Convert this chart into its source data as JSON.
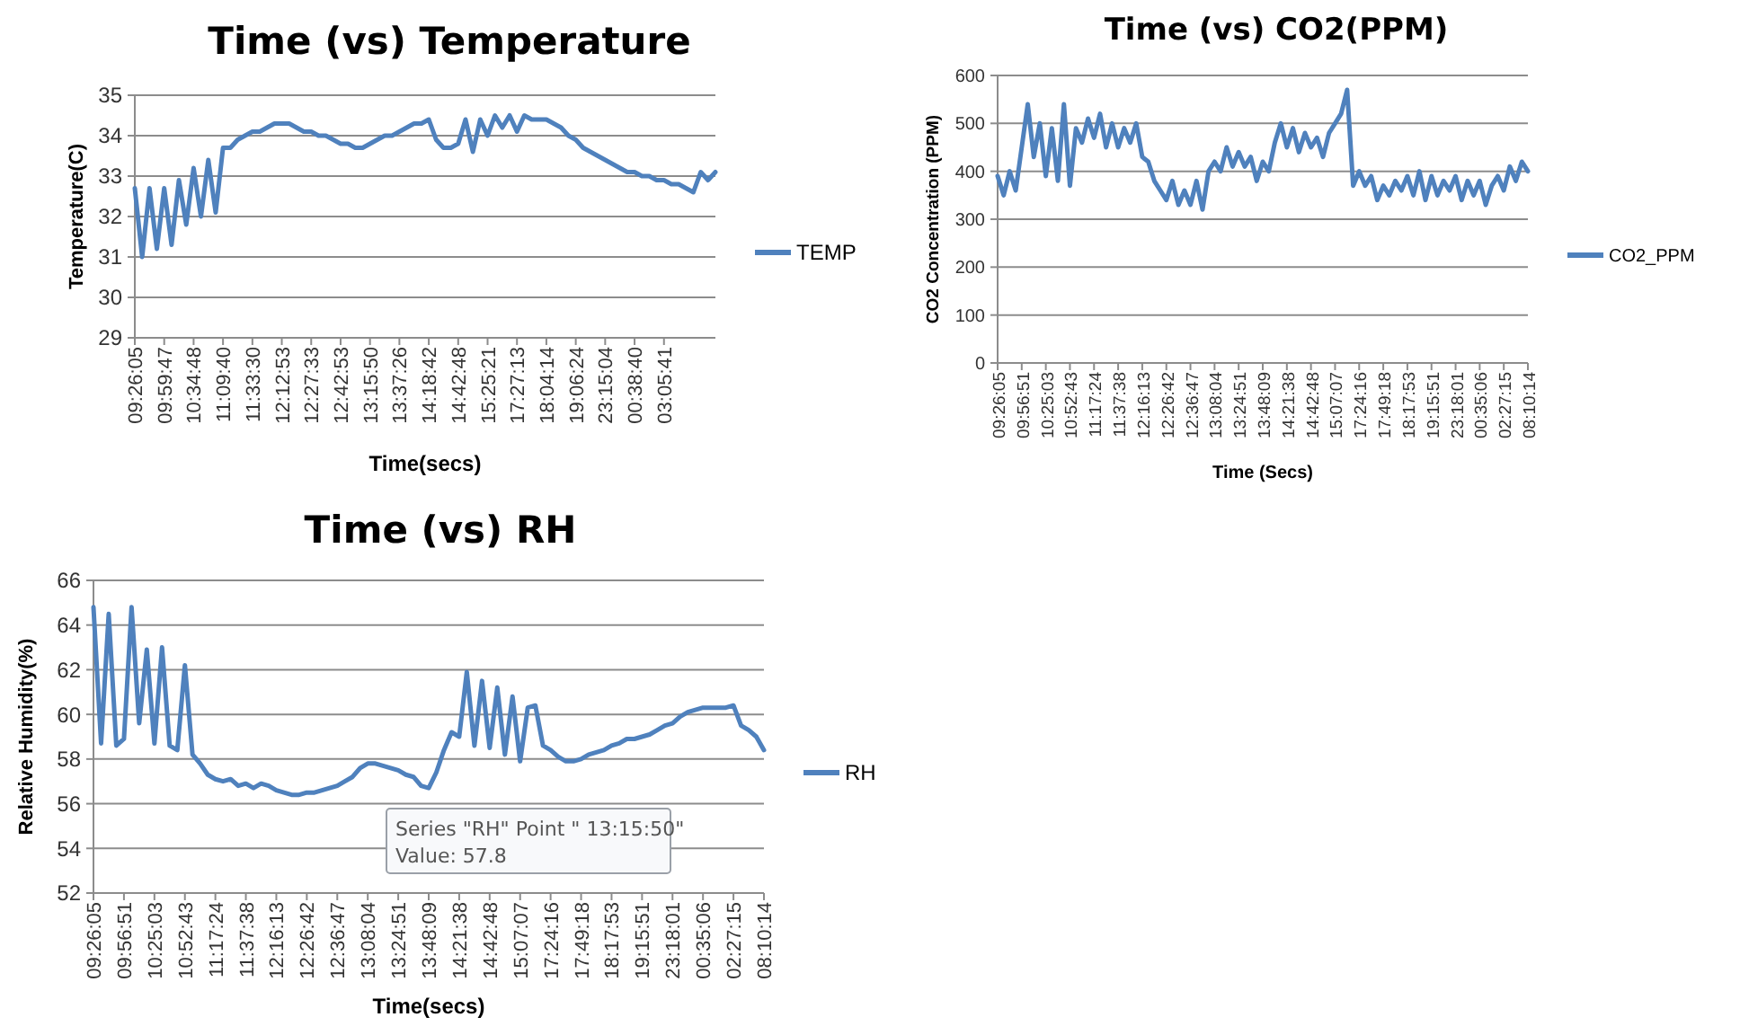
{
  "chart_data": [
    {
      "type": "line",
      "title": "Time (vs) Temperature",
      "xlabel": "Time(secs)",
      "ylabel": "Temperature(C)",
      "ylim": [
        29,
        35
      ],
      "yticks": [
        29,
        30,
        31,
        32,
        33,
        34,
        35
      ],
      "grid": "y",
      "legend": "right",
      "marker": "none",
      "categories": [
        "09:26:05",
        null,
        null,
        null,
        "09:59:47",
        null,
        null,
        null,
        "10:34:48",
        null,
        null,
        null,
        "11:09:40",
        null,
        null,
        null,
        "11:33:30",
        null,
        null,
        null,
        "12:12:53",
        null,
        null,
        null,
        "12:27:33",
        null,
        null,
        null,
        "12:42:53",
        null,
        null,
        null,
        "13:15:50",
        null,
        null,
        null,
        "13:37:26",
        null,
        null,
        null,
        "14:18:42",
        null,
        null,
        null,
        "14:42:48",
        null,
        null,
        null,
        "15:25:21",
        null,
        null,
        null,
        "17:27:13",
        null,
        null,
        null,
        "18:04:14",
        null,
        null,
        null,
        "19:06:24",
        null,
        null,
        null,
        "23:15:04",
        null,
        null,
        null,
        "00:38:40",
        null,
        null,
        null,
        "03:05:41",
        null,
        null,
        null,
        null,
        null,
        null,
        null
      ],
      "series": [
        {
          "name": "TEMP",
          "color": "#4f81bd",
          "values": [
            32.7,
            31.0,
            32.7,
            31.2,
            32.7,
            31.3,
            32.9,
            31.8,
            33.2,
            32.0,
            33.4,
            32.1,
            33.7,
            33.7,
            33.9,
            34.0,
            34.1,
            34.1,
            34.2,
            34.3,
            34.3,
            34.3,
            34.2,
            34.1,
            34.1,
            34.0,
            34.0,
            33.9,
            33.8,
            33.8,
            33.7,
            33.7,
            33.8,
            33.9,
            34.0,
            34.0,
            34.1,
            34.2,
            34.3,
            34.3,
            34.4,
            33.9,
            33.7,
            33.7,
            33.8,
            34.4,
            33.6,
            34.4,
            34.0,
            34.5,
            34.2,
            34.5,
            34.1,
            34.5,
            34.4,
            34.4,
            34.4,
            34.3,
            34.2,
            34.0,
            33.9,
            33.7,
            33.6,
            33.5,
            33.4,
            33.3,
            33.2,
            33.1,
            33.1,
            33.0,
            33.0,
            32.9,
            32.9,
            32.8,
            32.8,
            32.7,
            32.6,
            33.1,
            32.9,
            33.1
          ]
        }
      ]
    },
    {
      "type": "line",
      "title": "Time (vs) CO2(PPM)",
      "xlabel": "Time (Secs)",
      "ylabel": "CO2 Concentration  (PPM)",
      "ylim": [
        0,
        600
      ],
      "yticks": [
        0,
        100,
        200,
        300,
        400,
        500,
        600
      ],
      "grid": "y",
      "legend": "right",
      "marker": "none",
      "categories": [
        "09:26:05",
        null,
        null,
        null,
        "09:56:51",
        null,
        null,
        null,
        "10:25:03",
        null,
        null,
        null,
        "10:52:43",
        null,
        null,
        null,
        "11:17:24",
        null,
        null,
        null,
        "11:37:38",
        null,
        null,
        null,
        "12:16:13",
        null,
        null,
        null,
        "12:26:42",
        null,
        null,
        null,
        "12:36:47",
        null,
        null,
        null,
        "13:08:04",
        null,
        null,
        null,
        "13:24:51",
        null,
        null,
        null,
        "13:48:09",
        null,
        null,
        null,
        "14:21:38",
        null,
        null,
        null,
        "14:42:48",
        null,
        null,
        null,
        "15:07:07",
        null,
        null,
        null,
        "17:24:16",
        null,
        null,
        null,
        "17:49:18",
        null,
        null,
        null,
        "18:17:53",
        null,
        null,
        null,
        "19:15:51",
        null,
        null,
        null,
        "23:18:01",
        null,
        null,
        null,
        "00:35:06",
        null,
        null,
        null,
        "02:27:15",
        null,
        null,
        null,
        "08:10:14"
      ],
      "series": [
        {
          "name": "CO2_PPM",
          "color": "#4f81bd",
          "values": [
            390,
            350,
            400,
            360,
            450,
            540,
            430,
            500,
            390,
            490,
            380,
            540,
            370,
            490,
            460,
            510,
            470,
            520,
            450,
            500,
            450,
            490,
            460,
            500,
            430,
            420,
            380,
            360,
            340,
            380,
            330,
            360,
            330,
            380,
            320,
            400,
            420,
            400,
            450,
            410,
            440,
            410,
            430,
            380,
            420,
            400,
            460,
            500,
            450,
            490,
            440,
            480,
            450,
            470,
            430,
            480,
            500,
            520,
            570,
            370,
            400,
            370,
            390,
            340,
            370,
            350,
            380,
            360,
            390,
            350,
            400,
            340,
            390,
            350,
            380,
            360,
            390,
            340,
            380,
            350,
            380,
            330,
            370,
            390,
            360,
            410,
            380,
            420,
            400
          ]
        }
      ]
    },
    {
      "type": "line",
      "title": "Time (vs) RH",
      "xlabel": "Time(secs)",
      "ylabel": "Relative Humidity(%)",
      "ylim": [
        52,
        66
      ],
      "yticks": [
        52,
        54,
        56,
        58,
        60,
        62,
        64,
        66
      ],
      "grid": "y",
      "legend": "right",
      "marker": "none",
      "annotations": [
        "Series \"RH\" Point \" 13:15:50\"\nValue: 57.8"
      ],
      "categories": [
        "09:26:05",
        null,
        null,
        null,
        "09:56:51",
        null,
        null,
        null,
        "10:25:03",
        null,
        null,
        null,
        "10:52:43",
        null,
        null,
        null,
        "11:17:24",
        null,
        null,
        null,
        "11:37:38",
        null,
        null,
        null,
        "12:16:13",
        null,
        null,
        null,
        "12:26:42",
        null,
        null,
        null,
        "12:36:47",
        null,
        null,
        null,
        "13:08:04",
        null,
        null,
        null,
        "13:24:51",
        null,
        null,
        null,
        "13:48:09",
        null,
        null,
        null,
        "14:21:38",
        null,
        null,
        null,
        "14:42:48",
        null,
        null,
        null,
        "15:07:07",
        null,
        null,
        null,
        "17:24:16",
        null,
        null,
        null,
        "17:49:18",
        null,
        null,
        null,
        "18:17:53",
        null,
        null,
        null,
        "19:15:51",
        null,
        null,
        null,
        "23:18:01",
        null,
        null,
        null,
        "00:35:06",
        null,
        null,
        null,
        "02:27:15",
        null,
        null,
        null,
        "08:10:14"
      ],
      "series": [
        {
          "name": "RH",
          "color": "#4f81bd",
          "values": [
            64.8,
            58.7,
            64.5,
            58.6,
            58.9,
            64.8,
            59.6,
            62.9,
            58.7,
            63.0,
            58.6,
            58.4,
            62.2,
            58.2,
            57.8,
            57.3,
            57.1,
            57.0,
            57.1,
            56.8,
            56.9,
            56.7,
            56.9,
            56.8,
            56.6,
            56.5,
            56.4,
            56.4,
            56.5,
            56.5,
            56.6,
            56.7,
            56.8,
            57.0,
            57.2,
            57.6,
            57.8,
            57.8,
            57.7,
            57.6,
            57.5,
            57.3,
            57.2,
            56.8,
            56.7,
            57.4,
            58.4,
            59.2,
            59.0,
            61.9,
            58.6,
            61.5,
            58.5,
            61.2,
            58.2,
            60.8,
            57.9,
            60.3,
            60.4,
            58.6,
            58.4,
            58.1,
            57.9,
            57.9,
            58.0,
            58.2,
            58.3,
            58.4,
            58.6,
            58.7,
            58.9,
            58.9,
            59.0,
            59.1,
            59.3,
            59.5,
            59.6,
            59.9,
            60.1,
            60.2,
            60.3,
            60.3,
            60.3,
            60.3,
            60.4,
            59.5,
            59.3,
            59.0,
            58.4
          ]
        }
      ]
    }
  ]
}
